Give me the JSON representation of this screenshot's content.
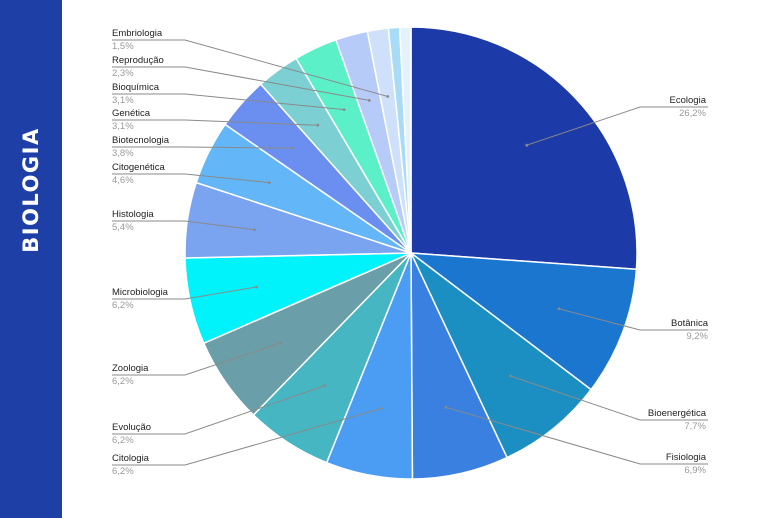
{
  "sidebar": {
    "title": "BIOLOGIA",
    "color": "#1e3fa6"
  },
  "chart_data": {
    "type": "pie",
    "title": "",
    "slices": [
      {
        "label": "Ecologia",
        "value": "26,2%",
        "pct": 26.2,
        "color": "#1c3aa8"
      },
      {
        "label": "Botânica",
        "value": "9,2%",
        "pct": 9.2,
        "color": "#1a76cf"
      },
      {
        "label": "Bioenergética",
        "value": "7,7%",
        "pct": 7.7,
        "color": "#1b8fc2"
      },
      {
        "label": "Fisiologia",
        "value": "6,9%",
        "pct": 6.9,
        "color": "#3a80e0"
      },
      {
        "label": "Citologia",
        "value": "6,2%",
        "pct": 6.2,
        "color": "#4a9df2"
      },
      {
        "label": "Evolução",
        "value": "6,2%",
        "pct": 6.2,
        "color": "#46b6c2"
      },
      {
        "label": "Zoologia",
        "value": "6,2%",
        "pct": 6.2,
        "color": "#6a9ea8"
      },
      {
        "label": "Microbiologia",
        "value": "6,2%",
        "pct": 6.2,
        "color": "#00f3fb"
      },
      {
        "label": "Histologia",
        "value": "5,4%",
        "pct": 5.4,
        "color": "#7aa3f0"
      },
      {
        "label": "Citogenética",
        "value": "4,6%",
        "pct": 4.6,
        "color": "#63b6f8"
      },
      {
        "label": "Biotecnologia",
        "value": "3,8%",
        "pct": 3.8,
        "color": "#6b8ff0"
      },
      {
        "label": "Genética",
        "value": "3,1%",
        "pct": 3.1,
        "color": "#7ccfd2"
      },
      {
        "label": "Bioquímica",
        "value": "3,1%",
        "pct": 3.1,
        "color": "#5cf0c8"
      },
      {
        "label": "Reprodução",
        "value": "2,3%",
        "pct": 2.3,
        "color": "#b6cbf8"
      },
      {
        "label": "Embriologia",
        "value": "1,5%",
        "pct": 1.5,
        "color": "#cfe0fa"
      },
      {
        "label": "",
        "value": "",
        "pct": 0.8,
        "color": "#a8dcf6"
      },
      {
        "label": "",
        "value": "",
        "pct": 0.8,
        "color": "#e4f2fc"
      }
    ]
  }
}
